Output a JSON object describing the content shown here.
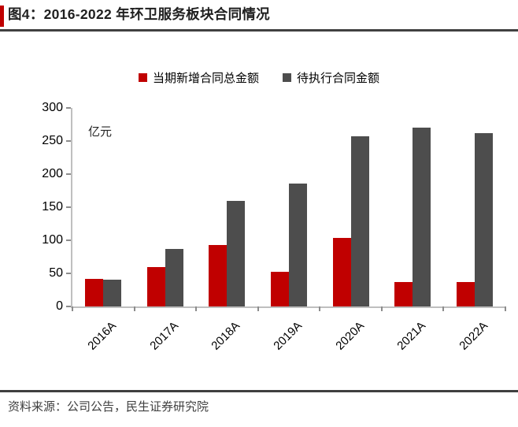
{
  "title": "图4：2016-2022 年环卫服务板块合同情况",
  "footer": {
    "source_text": "资料来源：公司公告，民生证券研究院"
  },
  "colors": {
    "accent_red": "#c00000",
    "bar_red": "#c00000",
    "bar_gray": "#4d4d4d",
    "axis_gray": "#bfbfbf",
    "rule_dark": "#404040"
  },
  "chart_data": {
    "type": "bar",
    "title": "图4：2016-2022 年环卫服务板块合同情况",
    "unit_label": "亿元",
    "categories": [
      "2016A",
      "2017A",
      "2018A",
      "2019A",
      "2020A",
      "2021A",
      "2022A"
    ],
    "series": [
      {
        "name": "当期新增合同总金额",
        "color": "#c00000",
        "values": [
          42,
          59,
          93,
          52,
          103,
          37,
          37
        ]
      },
      {
        "name": "待执行合同金额",
        "color": "#4d4d4d",
        "values": [
          40,
          87,
          160,
          186,
          257,
          270,
          262
        ]
      }
    ],
    "ylim": [
      0,
      300
    ],
    "ytick_step": 50,
    "yticks": [
      0,
      50,
      100,
      150,
      200,
      250,
      300
    ],
    "legend_position": "top",
    "grid": false
  }
}
